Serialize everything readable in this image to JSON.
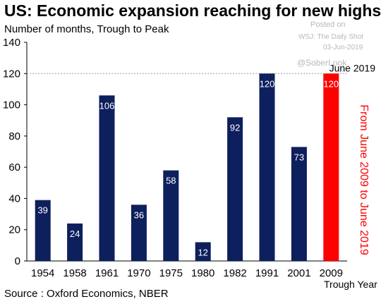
{
  "title": "US: Economic expansion reaching for new highs",
  "subtitle": "Number of months, Trough to Peak",
  "watermark": {
    "posted": "Posted on",
    "source": "WSJ: The Daily Shot",
    "date": "03-Jun-2019",
    "handle": "@SoberLook"
  },
  "source": "Source : Oxford Economics, NBER",
  "colors": {
    "bar": "#0d1f5c",
    "highlight": "#ff0000",
    "reference_line": "#999999"
  },
  "chart_data": {
    "type": "bar",
    "categories": [
      "1954",
      "1958",
      "1961",
      "1970",
      "1975",
      "1980",
      "1982",
      "1991",
      "2001",
      "2009"
    ],
    "values": [
      39,
      24,
      106,
      36,
      58,
      12,
      92,
      120,
      73,
      120
    ],
    "highlight_index": 9,
    "xlabel": "Trough Year",
    "ylabel": "",
    "ylim": [
      0,
      140
    ],
    "yticks": [
      0,
      20,
      40,
      60,
      80,
      100,
      120,
      140
    ],
    "reference_line": {
      "value": 120,
      "label": "June 2019",
      "style": "dashed"
    },
    "annotation": "From June 2009 to June 2019",
    "data_labels": true,
    "grid": false
  }
}
